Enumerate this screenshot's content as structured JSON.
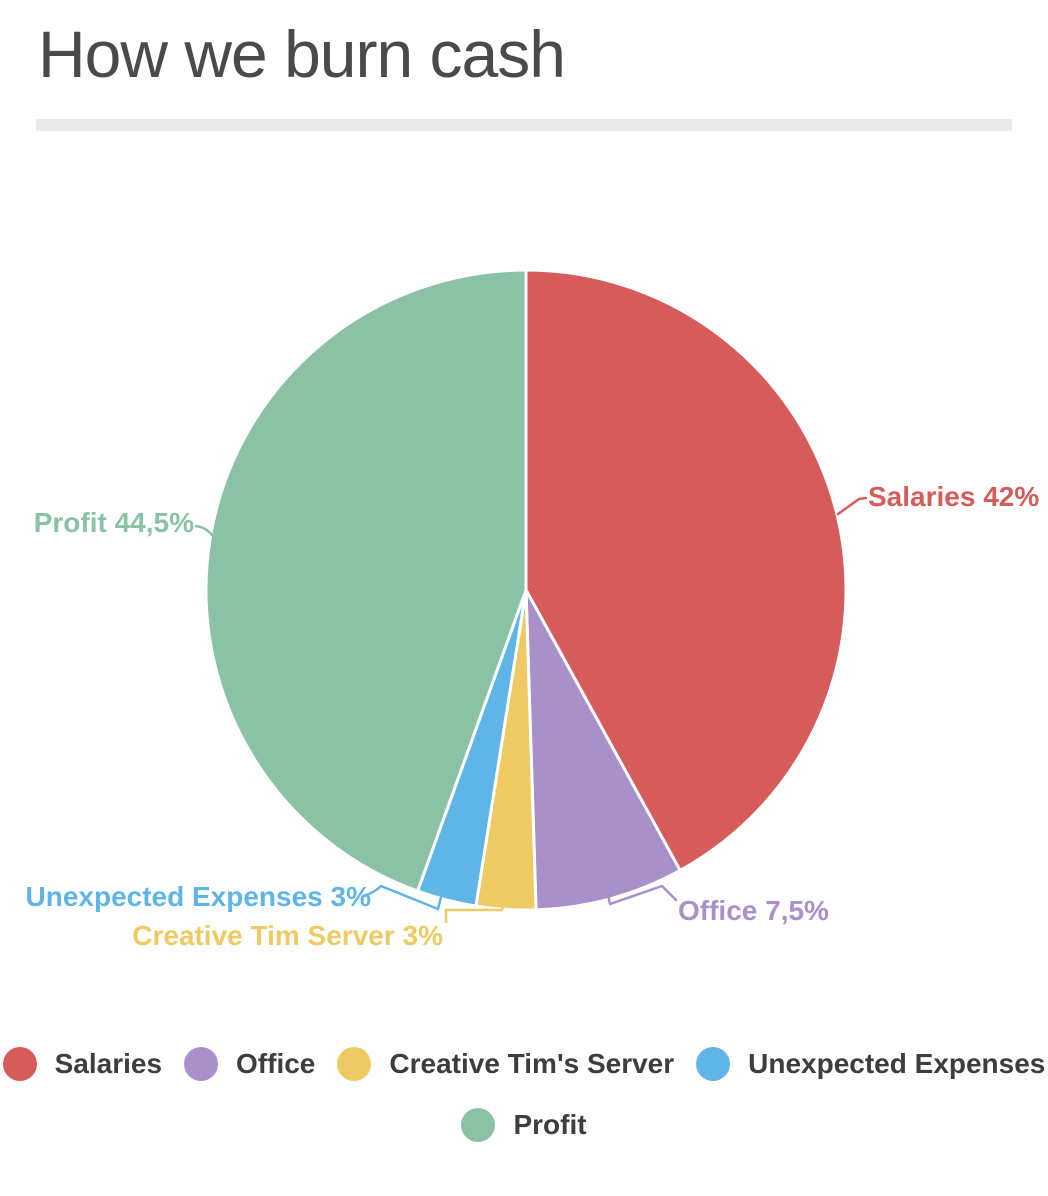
{
  "header": {
    "title": "How we burn cash"
  },
  "chart_data": {
    "type": "pie",
    "title": "How we burn cash",
    "start_angle_deg": 0,
    "direction": "clockwise",
    "legend_position": "bottom",
    "grid": false,
    "series": [
      {
        "label": "Salaries",
        "value": 42,
        "percent_display": "42%",
        "slice_label": "Salaries 42%",
        "color": "#d65b5b"
      },
      {
        "label": "Office",
        "value": 7.5,
        "percent_display": "7,5%",
        "slice_label": "Office 7,5%",
        "color": "#aa90c8"
      },
      {
        "label": "Creative Tim's Server",
        "value": 3,
        "percent_display": "3%",
        "slice_label": "Creative Tim Server 3%",
        "color": "#eeca62"
      },
      {
        "label": "Unexpected Expenses",
        "value": 3,
        "percent_display": "3%",
        "slice_label": "Unexpected Expenses 3%",
        "color": "#5fb6e6"
      },
      {
        "label": "Profit",
        "value": 44.5,
        "percent_display": "44,5%",
        "slice_label": "Profit 44,5%",
        "color": "#8bc2a6"
      }
    ]
  }
}
